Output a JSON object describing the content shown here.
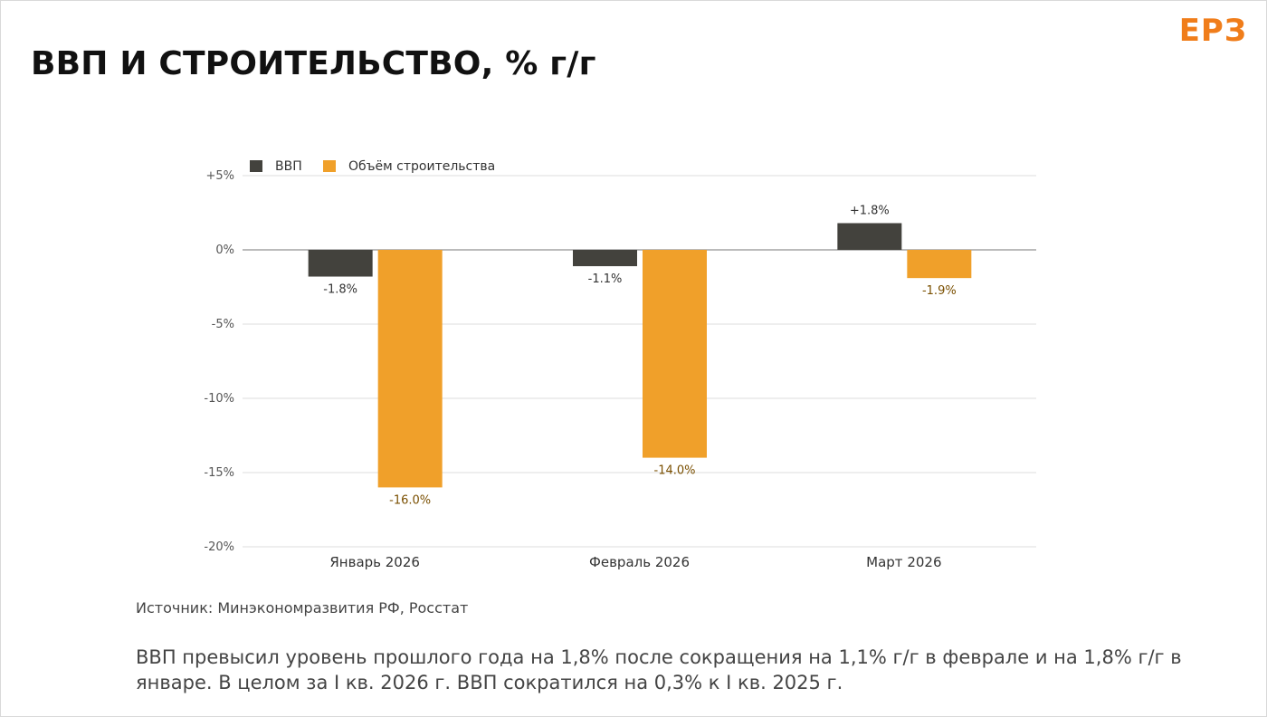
{
  "header": {
    "title": "ВВП И СТРОИТЕЛЬСТВО, % г/г",
    "logo": "ЕРЗ"
  },
  "colors": {
    "gdp": "#43423d",
    "construction": "#f0a02a",
    "grid": "#dddddd",
    "zero_line": "#777777"
  },
  "chart_data": {
    "type": "bar",
    "categories": [
      "Январь 2026",
      "Февраль 2026",
      "Март 2026"
    ],
    "series": [
      {
        "name": "ВВП",
        "values": [
          -1.8,
          -1.1,
          1.8
        ],
        "labels": [
          "-1.8%",
          "-1.1%",
          "+1.8%"
        ]
      },
      {
        "name": "Объём строительства",
        "values": [
          -16.0,
          -14.0,
          -1.9
        ],
        "labels": [
          "-16.0%",
          "-14.0%",
          "-1.9%"
        ]
      }
    ],
    "ylim": [
      -20,
      5
    ],
    "yticks": [
      5,
      0,
      -5,
      -10,
      -15,
      -20
    ],
    "ytick_labels": [
      "+5%",
      "0%",
      "-5%",
      "-10%",
      "-15%",
      "-20%"
    ],
    "grid": true,
    "legend_position": "top-left"
  },
  "footer": {
    "source": "Источник: Минэкономразвития РФ, Росстат",
    "note": "ВВП превысил уровень прошлого года на 1,8% после сокращения на 1,1% г/г в феврале и на 1,8% г/г в январе. В целом за I кв. 2026 г. ВВП сократился на 0,3% к I кв. 2025 г."
  }
}
